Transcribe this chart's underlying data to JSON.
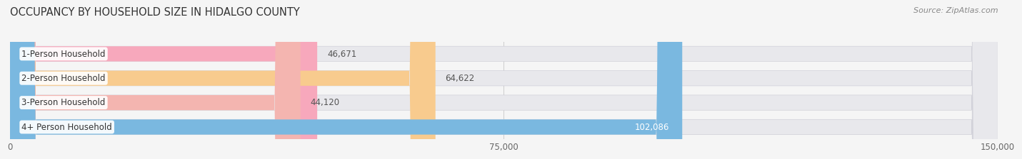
{
  "title": "OCCUPANCY BY HOUSEHOLD SIZE IN HIDALGO COUNTY",
  "source": "Source: ZipAtlas.com",
  "categories": [
    "1-Person Household",
    "2-Person Household",
    "3-Person Household",
    "4+ Person Household"
  ],
  "values": [
    46671,
    64622,
    44120,
    102086
  ],
  "value_labels": [
    "46,671",
    "64,622",
    "44,120",
    "102,086"
  ],
  "bar_colors": [
    "#f7a8bc",
    "#f8cb8e",
    "#f4b5b0",
    "#7ab8e0"
  ],
  "value_label_colors": [
    "#555555",
    "#555555",
    "#555555",
    "#ffffff"
  ],
  "xlim": [
    0,
    150000
  ],
  "xticks": [
    0,
    75000,
    150000
  ],
  "xtick_labels": [
    "0",
    "75,000",
    "150,000"
  ],
  "title_fontsize": 10.5,
  "source_fontsize": 8,
  "label_fontsize": 8.5,
  "value_fontsize": 8.5,
  "bar_height": 0.62,
  "background_color": "#f5f5f5",
  "bar_bg_color": "#e8e8ec",
  "title_color": "#333333",
  "source_color": "#888888"
}
